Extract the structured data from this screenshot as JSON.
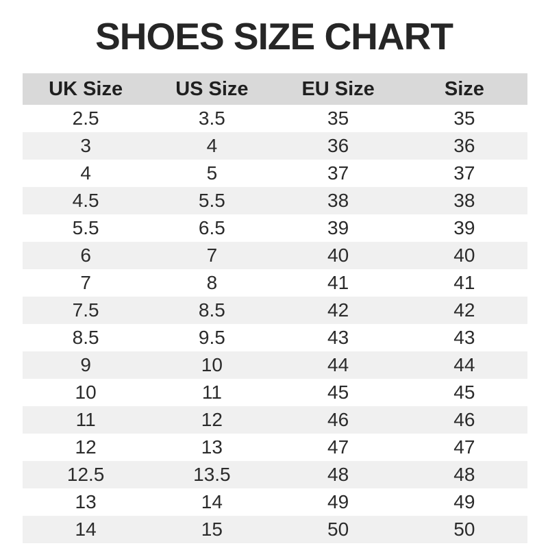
{
  "page_title": "SHOES SIZE CHART",
  "colors": {
    "background": "#ffffff",
    "title_text": "#262626",
    "header_background": "#d9d9d9",
    "header_text": "#1f1f1f",
    "row_stripe": "#f0f0f0",
    "row_plain": "#ffffff",
    "cell_text": "#2b2b2b"
  },
  "chart_data": {
    "type": "table",
    "title": "SHOES SIZE CHART",
    "columns": [
      "UK Size",
      "US Size",
      "EU Size",
      "Size"
    ],
    "rows": [
      [
        "2.5",
        "3.5",
        "35",
        "35"
      ],
      [
        "3",
        "4",
        "36",
        "36"
      ],
      [
        "4",
        "5",
        "37",
        "37"
      ],
      [
        "4.5",
        "5.5",
        "38",
        "38"
      ],
      [
        "5.5",
        "6.5",
        "39",
        "39"
      ],
      [
        "6",
        "7",
        "40",
        "40"
      ],
      [
        "7",
        "8",
        "41",
        "41"
      ],
      [
        "7.5",
        "8.5",
        "42",
        "42"
      ],
      [
        "8.5",
        "9.5",
        "43",
        "43"
      ],
      [
        "9",
        "10",
        "44",
        "44"
      ],
      [
        "10",
        "11",
        "45",
        "45"
      ],
      [
        "11",
        "12",
        "46",
        "46"
      ],
      [
        "12",
        "13",
        "47",
        "47"
      ],
      [
        "12.5",
        "13.5",
        "48",
        "48"
      ],
      [
        "13",
        "14",
        "49",
        "49"
      ],
      [
        "14",
        "15",
        "50",
        "50"
      ]
    ],
    "layout": {
      "striped": true,
      "first_data_row_background": "plain",
      "column_alignment": "center"
    }
  }
}
